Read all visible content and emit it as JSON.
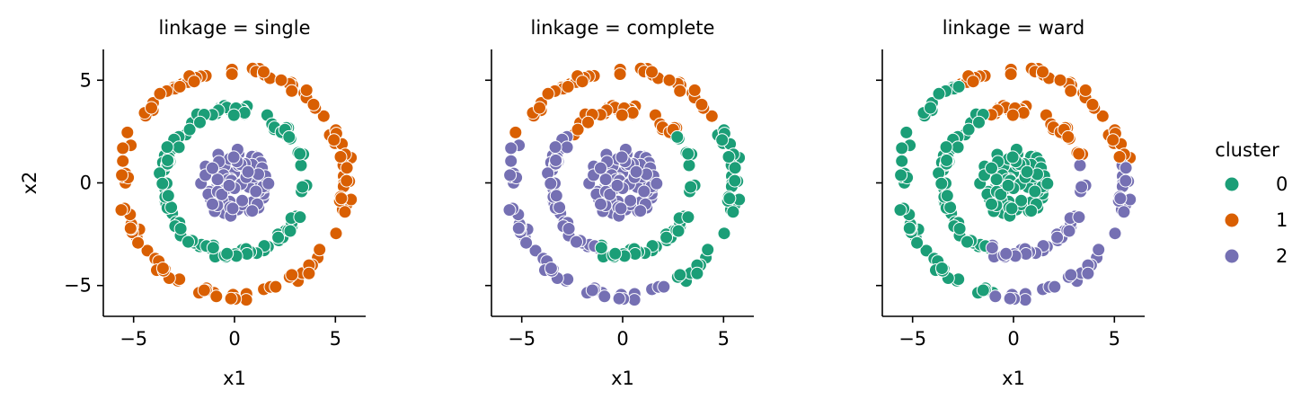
{
  "chart_data": {
    "type": "scatter",
    "panel_titles": [
      "linkage = single",
      "linkage = complete",
      "linkage = ward"
    ],
    "xlabel": "x1",
    "ylabel": "x2",
    "xlim": [
      -6.5,
      6.5
    ],
    "ylim": [
      -6.5,
      6.5
    ],
    "xticks": [
      -5,
      0,
      5
    ],
    "yticks": [
      -5,
      0,
      5
    ],
    "tick_labels": [
      "−5",
      "0",
      "5"
    ],
    "grid": false,
    "legend": {
      "title": "cluster",
      "placement": "right",
      "entries": [
        {
          "label": "0",
          "color": "#1b9e77"
        },
        {
          "label": "1",
          "color": "#d95f02"
        },
        {
          "label": "2",
          "color": "#7570b3"
        }
      ]
    },
    "dataset": {
      "description_rings": [
        {
          "ring": "inner",
          "radius": 1.0,
          "n": 90
        },
        {
          "ring": "middle",
          "radius": 3.5,
          "n": 110
        },
        {
          "ring": "outer",
          "radius": 5.5,
          "n": 120
        }
      ]
    },
    "panels": [
      {
        "title": "linkage = single",
        "rule": "inner→2, middle→0, outer→1"
      },
      {
        "title": "linkage = complete",
        "rule": "top arc of outer & middle rings→1; right side→0; left/bottom→2; center→2"
      },
      {
        "title": "linkage = ward",
        "rule": "center & left rings→0; upper-right arcs→1; lower-right arcs→2"
      }
    ]
  }
}
